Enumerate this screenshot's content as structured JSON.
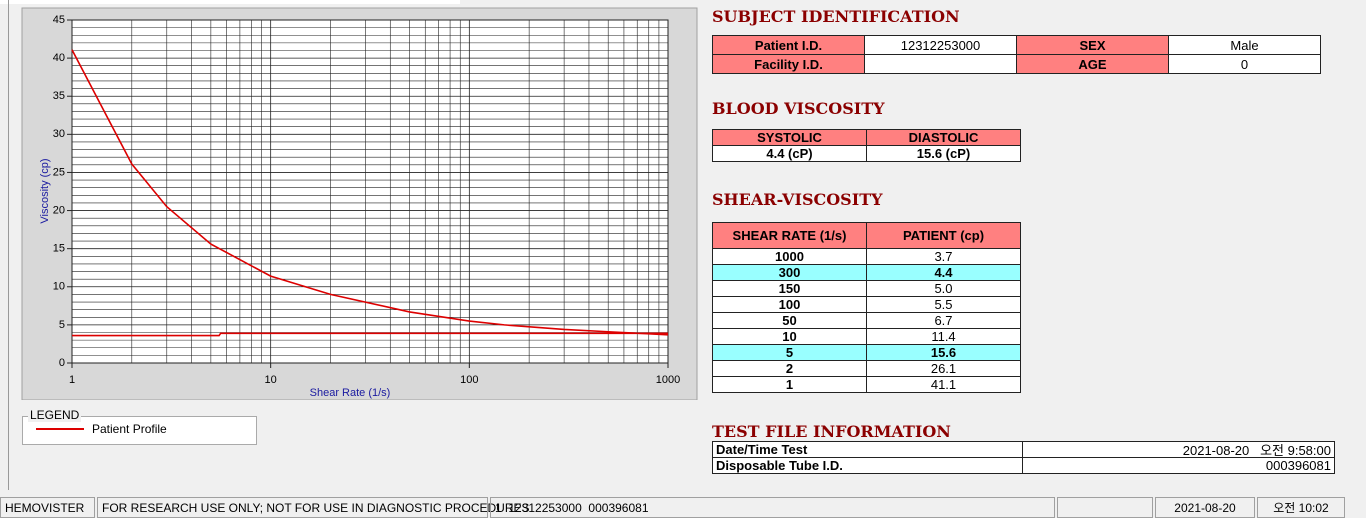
{
  "chart_data": {
    "type": "line",
    "xlabel": "Shear Rate (1/s)",
    "ylabel": "Viscosity (cp)",
    "xlog": true,
    "xlim": [
      1,
      1000
    ],
    "ylim": [
      0,
      45
    ],
    "xticks": [
      1,
      10,
      100,
      1000
    ],
    "yticks": [
      0,
      5,
      10,
      15,
      20,
      25,
      30,
      35,
      40,
      45
    ],
    "xminorticks": [
      2,
      3,
      4,
      5,
      6,
      7,
      8,
      9,
      20,
      30,
      40,
      50,
      60,
      70,
      80,
      90,
      200,
      300,
      400,
      500,
      600,
      700,
      800,
      900
    ],
    "yminorticks": [
      1,
      2,
      3,
      4,
      6,
      7,
      8,
      9,
      11,
      12,
      13,
      14,
      16,
      17,
      18,
      19,
      21,
      22,
      23,
      24,
      26,
      27,
      28,
      29,
      31,
      32,
      33,
      34,
      36,
      37,
      38,
      39,
      41,
      42,
      43,
      44
    ],
    "grid": true,
    "legend_title": "LEGEND",
    "series": [
      {
        "name": "Patient Profile",
        "color": "#dd0000",
        "x": [
          1,
          2,
          3,
          5,
          10,
          20,
          50,
          100,
          150,
          300,
          500,
          1000
        ],
        "values": [
          41.1,
          26.1,
          20.5,
          15.6,
          11.4,
          9.0,
          6.7,
          5.5,
          5.0,
          4.4,
          4.1,
          3.7
        ]
      },
      {
        "color": "#dd0000",
        "x": [
          1,
          5.5,
          5.6,
          1000
        ],
        "values": [
          3.6,
          3.6,
          3.9,
          3.9
        ]
      }
    ]
  },
  "subject": {
    "title": "SUBJECT IDENTIFICATION",
    "rows": [
      [
        "Patient I.D.",
        "12312253000",
        "SEX",
        "Male"
      ],
      [
        "Facility I.D.",
        null,
        "AGE",
        "0"
      ]
    ]
  },
  "blood": {
    "title": "BLOOD VISCOSITY",
    "headers": [
      "SYSTOLIC",
      "DIASTOLIC"
    ],
    "values": [
      "4.4 (cP)",
      "15.6 (cP)"
    ]
  },
  "shear": {
    "title": "SHEAR-VISCOSITY",
    "headers": [
      "SHEAR RATE (1/s)",
      "PATIENT (cp)"
    ],
    "rows": [
      [
        "1000",
        "3.7"
      ],
      [
        "300",
        "4.4"
      ],
      [
        "150",
        "5.0"
      ],
      [
        "100",
        "5.5"
      ],
      [
        "50",
        "6.7"
      ],
      [
        "10",
        "11.4"
      ],
      [
        "5",
        "15.6"
      ],
      [
        "2",
        "26.1"
      ],
      [
        "1",
        "41.1"
      ]
    ],
    "highlight_rows": [
      1,
      6
    ]
  },
  "test_file": {
    "title": "TEST FILE INFORMATION",
    "rows": [
      [
        "Date/Time Test",
        "2021-08-20   오전 9:58:00"
      ],
      [
        "Disposable Tube I.D.",
        "000396081"
      ]
    ]
  },
  "status": [
    "HEMOVISTER",
    "FOR RESEARCH USE ONLY; NOT FOR USE IN DIAGNOSTIC PROCEDURES",
    "1  12312253000  000396081",
    null,
    "2021-08-20",
    "오전 10:02"
  ]
}
